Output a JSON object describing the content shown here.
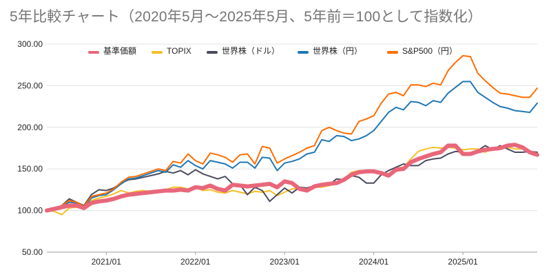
{
  "chart_data": {
    "type": "line",
    "title": "5年比較チャート（2020年5月〜2025年5月、5年前＝100として指数化）",
    "xlabel": "",
    "ylabel": "",
    "ylim": [
      50,
      300
    ],
    "yticks": [
      "300.00",
      "250.00",
      "200.00",
      "150.00",
      "100.00",
      "50.00"
    ],
    "ytick_values": [
      300,
      250,
      200,
      150,
      100,
      50
    ],
    "x_start": "2020/05",
    "xticks": [
      "2021/01",
      "2022/01",
      "2023/01",
      "2024/01",
      "2025/01"
    ],
    "xtick_index": [
      8,
      20,
      32,
      44,
      56
    ],
    "grid": true,
    "legend_position": "top",
    "series": [
      {
        "name": "基準価額",
        "color": "#e8677a",
        "values": [
          100,
          102,
          104,
          106,
          106,
          103,
          109,
          111,
          112,
          114,
          117,
          119,
          120,
          121,
          122,
          123,
          124,
          124,
          125,
          124,
          128,
          127,
          130,
          126,
          124,
          131,
          130,
          129,
          130,
          131,
          132,
          128,
          135,
          133,
          126,
          124,
          129,
          131,
          132,
          133,
          137,
          143,
          146,
          147,
          147,
          145,
          142,
          149,
          150,
          158,
          162,
          165,
          168,
          170,
          178,
          178,
          168,
          168,
          171,
          173,
          174,
          175,
          178,
          179,
          176,
          170,
          167
        ]
      },
      {
        "name": "TOPIX",
        "color": "#f6bf26",
        "values": [
          100,
          99,
          95,
          103,
          104,
          102,
          112,
          115,
          117,
          120,
          124,
          121,
          123,
          124,
          123,
          122,
          125,
          128,
          128,
          126,
          129,
          124,
          125,
          122,
          121,
          124,
          122,
          120,
          123,
          122,
          124,
          118,
          122,
          126,
          127,
          125,
          128,
          128,
          130,
          133,
          138,
          146,
          148,
          148,
          148,
          146,
          144,
          151,
          152,
          162,
          171,
          174,
          176,
          175,
          176,
          175,
          173,
          174,
          174,
          170,
          174,
          174,
          176,
          174,
          174,
          170,
          169
        ]
      },
      {
        "name": "世界株（ドル）",
        "color": "#4a4a5e",
        "values": [
          100,
          102,
          106,
          114,
          110,
          106,
          119,
          125,
          124,
          127,
          133,
          137,
          138,
          140,
          142,
          144,
          147,
          145,
          148,
          143,
          149,
          144,
          141,
          138,
          141,
          132,
          131,
          119,
          128,
          124,
          111,
          119,
          127,
          121,
          128,
          127,
          130,
          132,
          131,
          138,
          137,
          142,
          140,
          133,
          133,
          143,
          148,
          152,
          156,
          154,
          154,
          160,
          162,
          163,
          168,
          171,
          170,
          168,
          172,
          178,
          173,
          178,
          174,
          170,
          170,
          171,
          170
        ]
      },
      {
        "name": "世界株（円）",
        "color": "#1f77b4",
        "values": [
          100,
          102,
          105,
          110,
          109,
          104,
          115,
          118,
          119,
          125,
          132,
          138,
          139,
          142,
          145,
          148,
          146,
          155,
          152,
          160,
          154,
          150,
          160,
          158,
          156,
          151,
          158,
          158,
          151,
          164,
          163,
          148,
          157,
          159,
          162,
          168,
          170,
          185,
          183,
          190,
          189,
          184,
          186,
          190,
          196,
          207,
          218,
          224,
          221,
          231,
          230,
          226,
          232,
          230,
          241,
          248,
          255,
          255,
          242,
          236,
          230,
          225,
          223,
          220,
          219,
          218,
          229
        ]
      },
      {
        "name": "S&P500（円）",
        "color": "#ff6d01",
        "values": [
          100,
          103,
          106,
          112,
          110,
          105,
          117,
          119,
          121,
          126,
          134,
          140,
          141,
          144,
          147,
          150,
          148,
          159,
          157,
          168,
          160,
          156,
          169,
          167,
          164,
          158,
          167,
          168,
          156,
          177,
          175,
          157,
          162,
          166,
          170,
          175,
          178,
          196,
          200,
          196,
          193,
          192,
          207,
          210,
          214,
          229,
          240,
          242,
          238,
          251,
          251,
          249,
          253,
          251,
          268,
          278,
          286,
          285,
          265,
          256,
          248,
          241,
          240,
          238,
          236,
          236,
          247
        ]
      }
    ]
  }
}
